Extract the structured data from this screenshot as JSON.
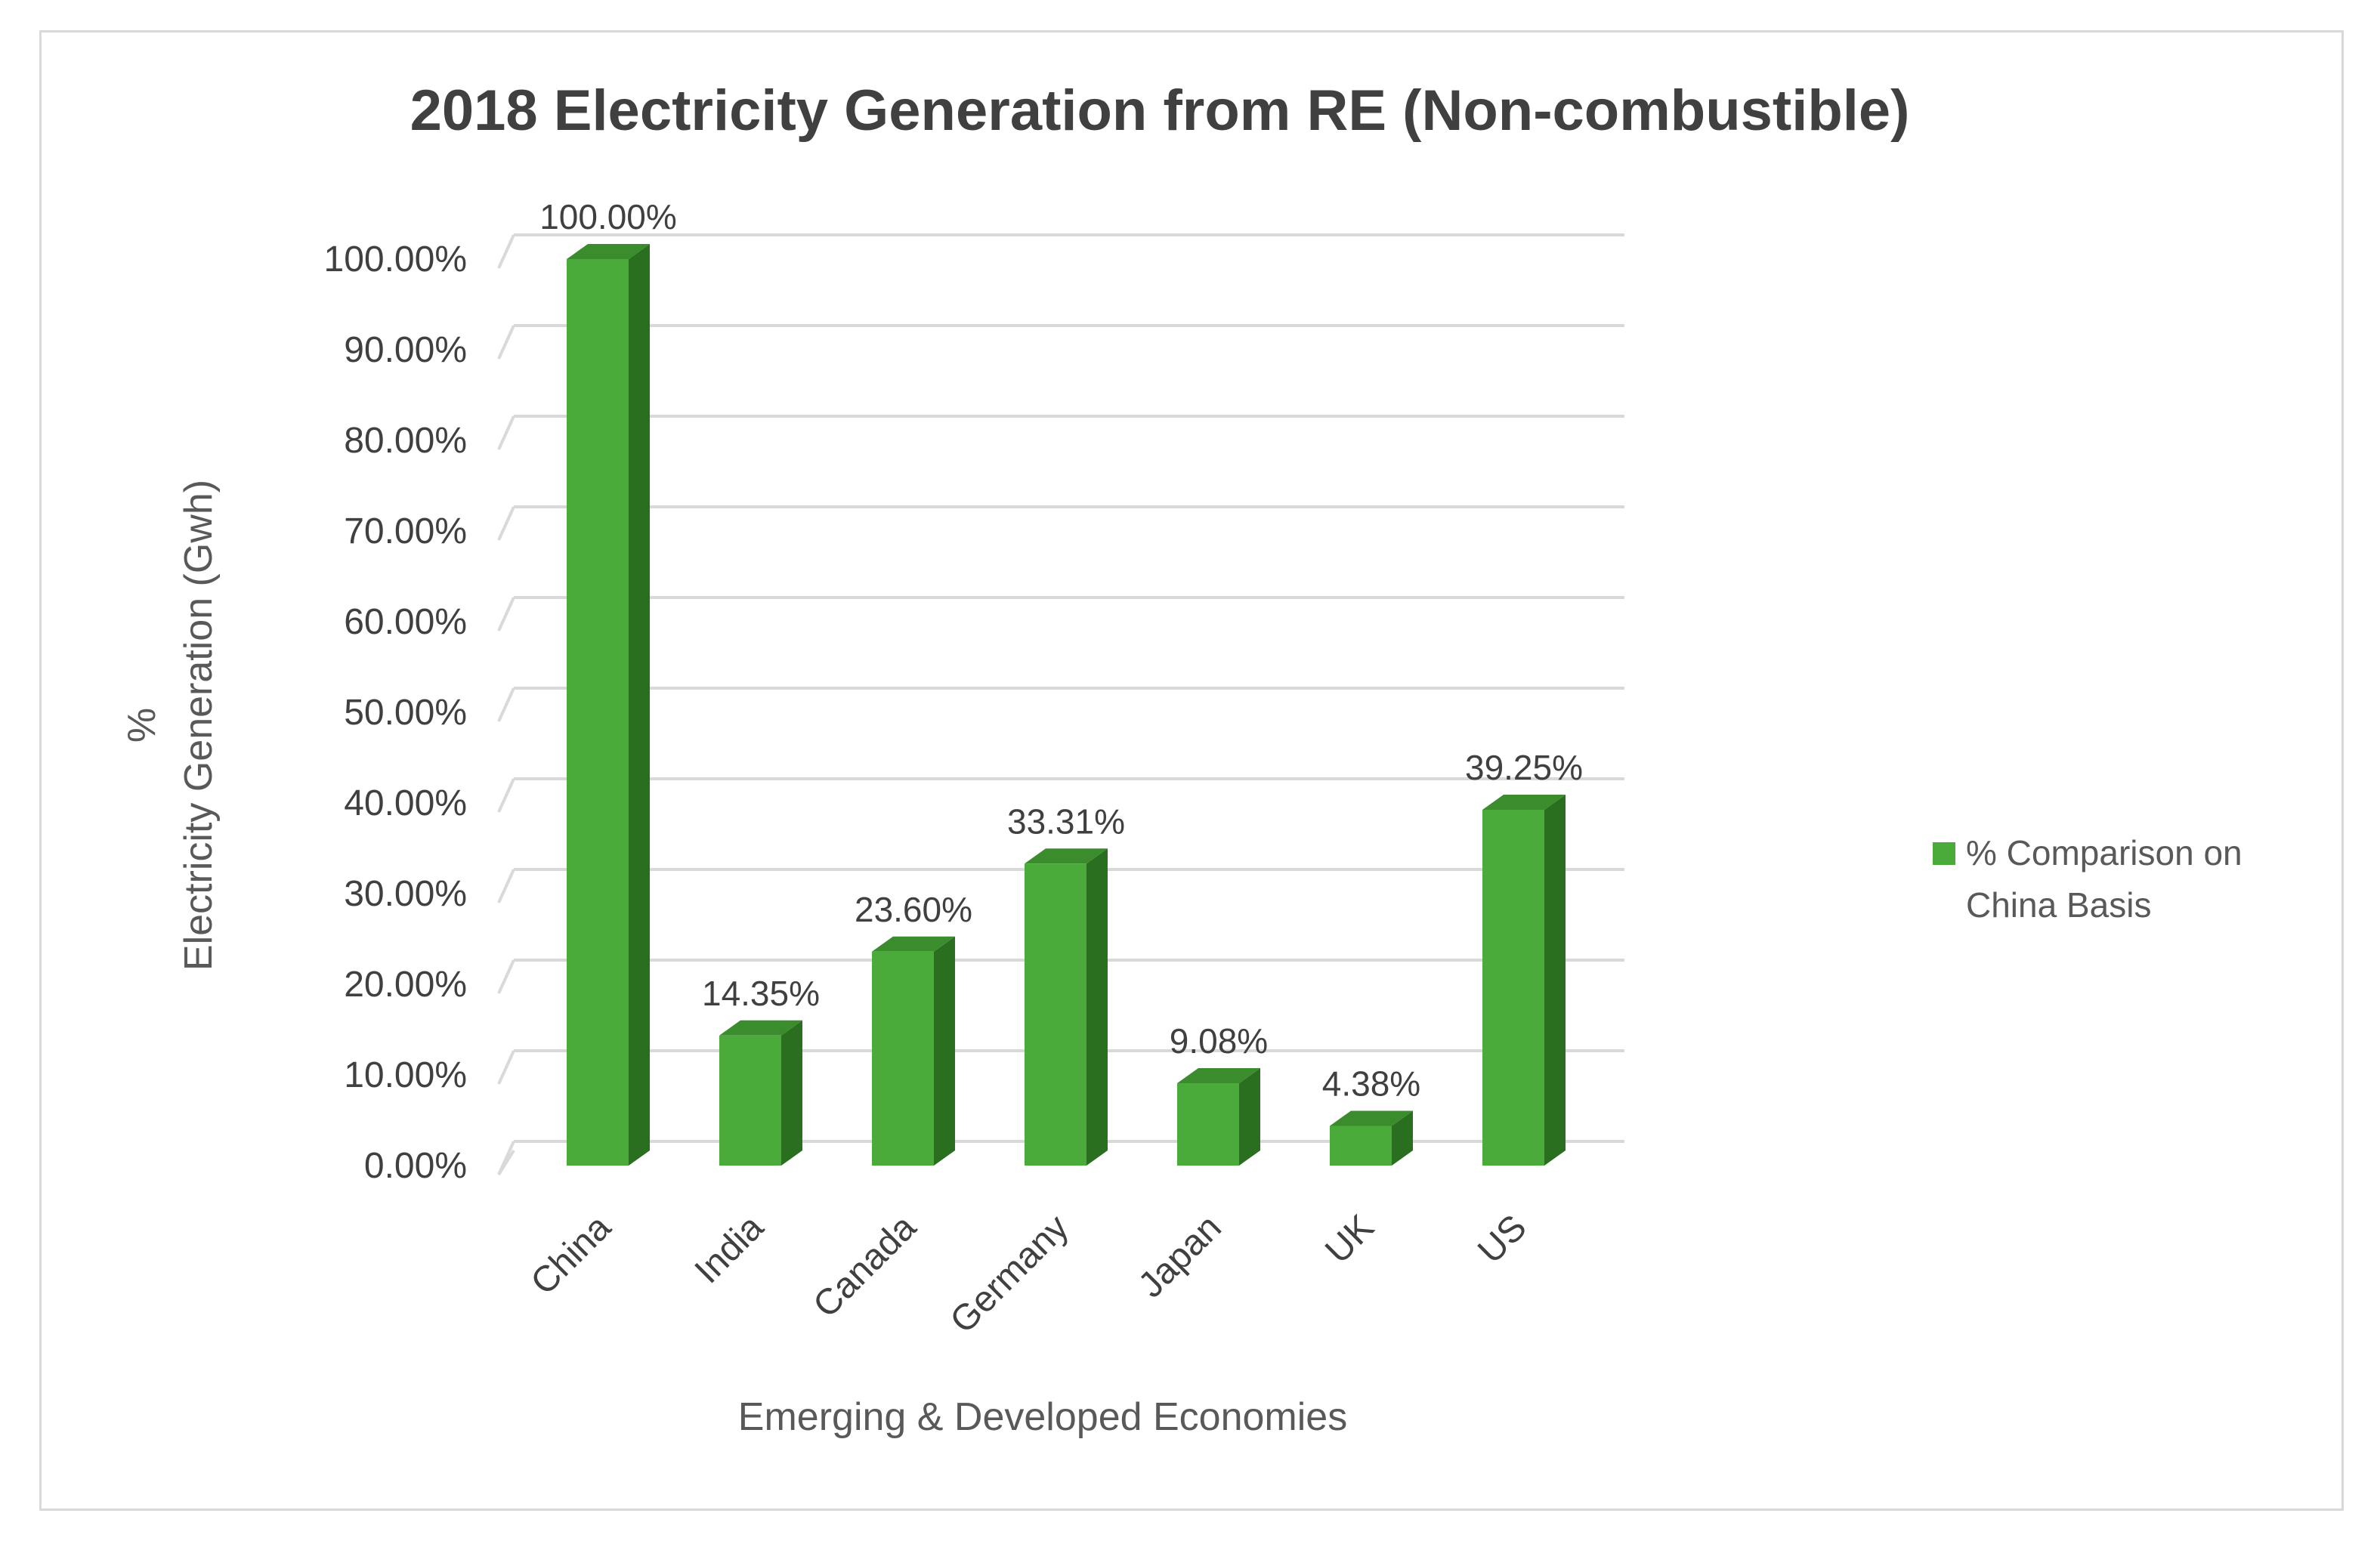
{
  "chart_data": {
    "type": "bar",
    "title": "2018 Electricity Generation from RE (Non-combustible)",
    "categories": [
      "China",
      "India",
      "Canada",
      "Germany",
      "Japan",
      "UK",
      "US"
    ],
    "series": [
      {
        "name": "% Comparison on China Basis",
        "values": [
          100.0,
          14.35,
          23.6,
          33.31,
          9.08,
          4.38,
          39.25
        ],
        "labels": [
          "100.00%",
          "14.35%",
          "23.60%",
          "33.31%",
          "9.08%",
          "4.38%",
          "39.25%"
        ]
      }
    ],
    "ylabel_line1": "%",
    "ylabel_line2": "Electricity Generation (Gwh)",
    "xlabel": "Emerging & Developed Economies",
    "ylim": [
      0,
      100
    ],
    "yticks": [
      "0.00%",
      "10.00%",
      "20.00%",
      "30.00%",
      "40.00%",
      "50.00%",
      "60.00%",
      "70.00%",
      "80.00%",
      "90.00%",
      "100.00%"
    ],
    "legend_line1": "% Comparison on",
    "legend_line2": "China Basis",
    "legend_position": "right",
    "grid": true,
    "colors": {
      "bar_front": "#4aaa3a",
      "bar_side": "#2a6e20",
      "bar_top": "#3a8c2c",
      "grid": "#d9d9d9"
    }
  }
}
